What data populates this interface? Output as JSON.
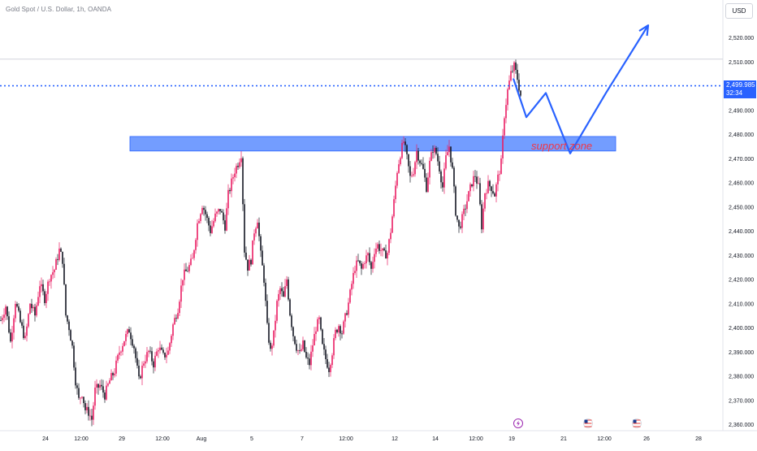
{
  "header": {
    "symbol_title": "Gold Spot / U.S. Dollar, 1h, OANDA",
    "currency": "USD"
  },
  "price_tag": {
    "price": "2,499.985",
    "countdown": "32:34"
  },
  "colors": {
    "up": "#e91e63",
    "down": "#131722",
    "accent": "#2962ff",
    "zone_fill": "#5b8cff",
    "zone_text": "#f23645"
  },
  "icons": {
    "lightning_event": "lightning-icon",
    "us_flag_event": "us-flag-icon"
  },
  "chart_data": {
    "type": "candlestick",
    "title": "Gold Spot / U.S. Dollar, 1h, OANDA",
    "ylim": [
      2355,
      2530
    ],
    "y_ticks": [
      "2,520.000",
      "2,510.000",
      "2,500.000",
      "2,490.000",
      "2,480.000",
      "2,470.000",
      "2,460.000",
      "2,450.000",
      "2,440.000",
      "2,430.000",
      "2,420.000",
      "2,410.000",
      "2,400.000",
      "2,390.000",
      "2,380.000",
      "2,370.000",
      "2,360.000"
    ],
    "y_tick_values": [
      2520,
      2510,
      2500,
      2490,
      2480,
      2470,
      2460,
      2450,
      2440,
      2430,
      2420,
      2410,
      2400,
      2390,
      2380,
      2370,
      2360
    ],
    "x_ticks": [
      "24",
      "12:00",
      "29",
      "12:00",
      "Aug",
      "5",
      "7",
      "12:00",
      "12",
      "14",
      "12:00",
      "19",
      "21",
      "12:00",
      "26",
      "28"
    ],
    "x_tick_index": [
      28,
      50,
      75,
      100,
      124,
      155,
      186,
      213,
      243,
      268,
      293,
      315,
      347,
      372,
      398,
      430
    ],
    "current_price": 2499.985,
    "price_path": [
      [
        0,
        2403
      ],
      [
        3,
        2409
      ],
      [
        6,
        2394
      ],
      [
        9,
        2411
      ],
      [
        12,
        2402
      ],
      [
        15,
        2395
      ],
      [
        18,
        2410
      ],
      [
        21,
        2405
      ],
      [
        24,
        2418
      ],
      [
        27,
        2412
      ],
      [
        30,
        2421
      ],
      [
        33,
        2424
      ],
      [
        36,
        2432
      ],
      [
        38,
        2428
      ],
      [
        40,
        2405
      ],
      [
        42,
        2400
      ],
      [
        44,
        2392
      ],
      [
        46,
        2378
      ],
      [
        48,
        2370
      ],
      [
        50,
        2373
      ],
      [
        52,
        2366
      ],
      [
        54,
        2365
      ],
      [
        56,
        2362
      ],
      [
        58,
        2374
      ],
      [
        61,
        2376
      ],
      [
        64,
        2372
      ],
      [
        67,
        2378
      ],
      [
        70,
        2382
      ],
      [
        73,
        2390
      ],
      [
        76,
        2395
      ],
      [
        79,
        2399
      ],
      [
        82,
        2392
      ],
      [
        85,
        2378
      ],
      [
        88,
        2386
      ],
      [
        91,
        2390
      ],
      [
        94,
        2385
      ],
      [
        97,
        2392
      ],
      [
        100,
        2388
      ],
      [
        103,
        2390
      ],
      [
        106,
        2401
      ],
      [
        109,
        2408
      ],
      [
        112,
        2421
      ],
      [
        115,
        2424
      ],
      [
        118,
        2428
      ],
      [
        121,
        2443
      ],
      [
        124,
        2451
      ],
      [
        126,
        2447
      ],
      [
        129,
        2440
      ],
      [
        132,
        2446
      ],
      [
        135,
        2449
      ],
      [
        138,
        2442
      ],
      [
        140,
        2455
      ],
      [
        142,
        2460
      ],
      [
        144,
        2465
      ],
      [
        146,
        2468
      ],
      [
        148,
        2472
      ],
      [
        150,
        2432
      ],
      [
        152,
        2425
      ],
      [
        154,
        2428
      ],
      [
        156,
        2440
      ],
      [
        158,
        2445
      ],
      [
        160,
        2430
      ],
      [
        162,
        2420
      ],
      [
        164,
        2400
      ],
      [
        166,
        2390
      ],
      [
        168,
        2397
      ],
      [
        170,
        2410
      ],
      [
        172,
        2416
      ],
      [
        174,
        2412
      ],
      [
        176,
        2420
      ],
      [
        178,
        2406
      ],
      [
        180,
        2397
      ],
      [
        182,
        2392
      ],
      [
        184,
        2389
      ],
      [
        186,
        2393
      ],
      [
        188,
        2387
      ],
      [
        190,
        2385
      ],
      [
        192,
        2393
      ],
      [
        194,
        2400
      ],
      [
        196,
        2403
      ],
      [
        198,
        2392
      ],
      [
        200,
        2387
      ],
      [
        202,
        2383
      ],
      [
        204,
        2390
      ],
      [
        206,
        2398
      ],
      [
        208,
        2401
      ],
      [
        210,
        2398
      ],
      [
        212,
        2404
      ],
      [
        214,
        2410
      ],
      [
        216,
        2418
      ],
      [
        218,
        2425
      ],
      [
        220,
        2427
      ],
      [
        222,
        2424
      ],
      [
        224,
        2428
      ],
      [
        226,
        2430
      ],
      [
        228,
        2424
      ],
      [
        230,
        2432
      ],
      [
        232,
        2434
      ],
      [
        234,
        2432
      ],
      [
        236,
        2430
      ],
      [
        238,
        2431
      ],
      [
        240,
        2440
      ],
      [
        242,
        2452
      ],
      [
        244,
        2465
      ],
      [
        246,
        2472
      ],
      [
        248,
        2477
      ],
      [
        250,
        2470
      ],
      [
        252,
        2462
      ],
      [
        254,
        2465
      ],
      [
        256,
        2473
      ],
      [
        258,
        2469
      ],
      [
        260,
        2465
      ],
      [
        262,
        2458
      ],
      [
        264,
        2468
      ],
      [
        266,
        2474
      ],
      [
        268,
        2472
      ],
      [
        270,
        2466
      ],
      [
        272,
        2458
      ],
      [
        274,
        2470
      ],
      [
        276,
        2475
      ],
      [
        278,
        2465
      ],
      [
        280,
        2448
      ],
      [
        282,
        2441
      ],
      [
        284,
        2445
      ],
      [
        286,
        2450
      ],
      [
        288,
        2455
      ],
      [
        290,
        2460
      ],
      [
        292,
        2463
      ],
      [
        294,
        2458
      ],
      [
        296,
        2442
      ],
      [
        298,
        2456
      ],
      [
        300,
        2459
      ],
      [
        302,
        2458
      ],
      [
        304,
        2455
      ],
      [
        306,
        2462
      ],
      [
        308,
        2468
      ],
      [
        310,
        2488
      ],
      [
        312,
        2498
      ],
      [
        314,
        2505
      ],
      [
        316,
        2508
      ],
      [
        318,
        2503
      ],
      [
        320,
        2496
      ]
    ],
    "support_zone": {
      "label": "support zone",
      "low": 2473,
      "high": 2479,
      "from_index": 80,
      "to_index": 379
    },
    "resistance_level": 2511,
    "projection": {
      "color": "#2962ff",
      "path": [
        [
          316,
          2503
        ],
        [
          324,
          2487
        ],
        [
          336,
          2497
        ],
        [
          351,
          2472
        ],
        [
          373,
          2497
        ],
        [
          399,
          2525
        ]
      ]
    },
    "events": [
      {
        "icon": "lightning-icon",
        "index": 319
      },
      {
        "icon": "us-flag-icon",
        "index": 362
      },
      {
        "icon": "us-flag-icon",
        "index": 392
      }
    ]
  }
}
